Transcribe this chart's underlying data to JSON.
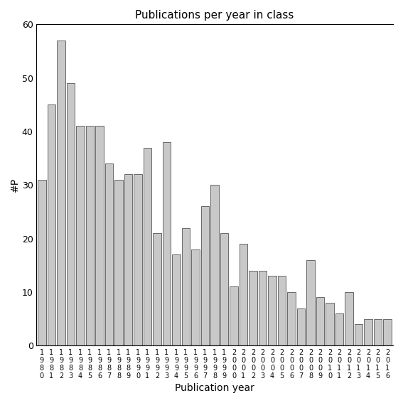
{
  "title": "Publications per year in class",
  "xlabel": "Publication year",
  "ylabel": "#P",
  "ylim": [
    0,
    60
  ],
  "yticks": [
    0,
    10,
    20,
    30,
    40,
    50,
    60
  ],
  "bar_color": "#c8c8c8",
  "bar_edgecolor": "#555555",
  "categories": [
    "1980",
    "1981",
    "1982",
    "1983",
    "1984",
    "1985",
    "1986",
    "1987",
    "1988",
    "1989",
    "1990",
    "1991",
    "1992",
    "1993",
    "1994",
    "1995",
    "1996",
    "1997",
    "1998",
    "1999",
    "2000",
    "2001",
    "2002",
    "2003",
    "2004",
    "2005",
    "2006",
    "2007",
    "2008",
    "2009",
    "2010",
    "2011",
    "2012",
    "2013",
    "2014",
    "2015",
    "2016"
  ],
  "values": [
    31,
    45,
    57,
    49,
    41,
    41,
    41,
    34,
    31,
    32,
    32,
    37,
    21,
    38,
    17,
    22,
    18,
    26,
    30,
    21,
    11,
    19,
    14,
    14,
    13,
    13,
    10,
    7,
    16,
    9,
    8,
    6,
    10,
    4,
    5,
    5,
    5
  ],
  "background_color": "#ffffff"
}
